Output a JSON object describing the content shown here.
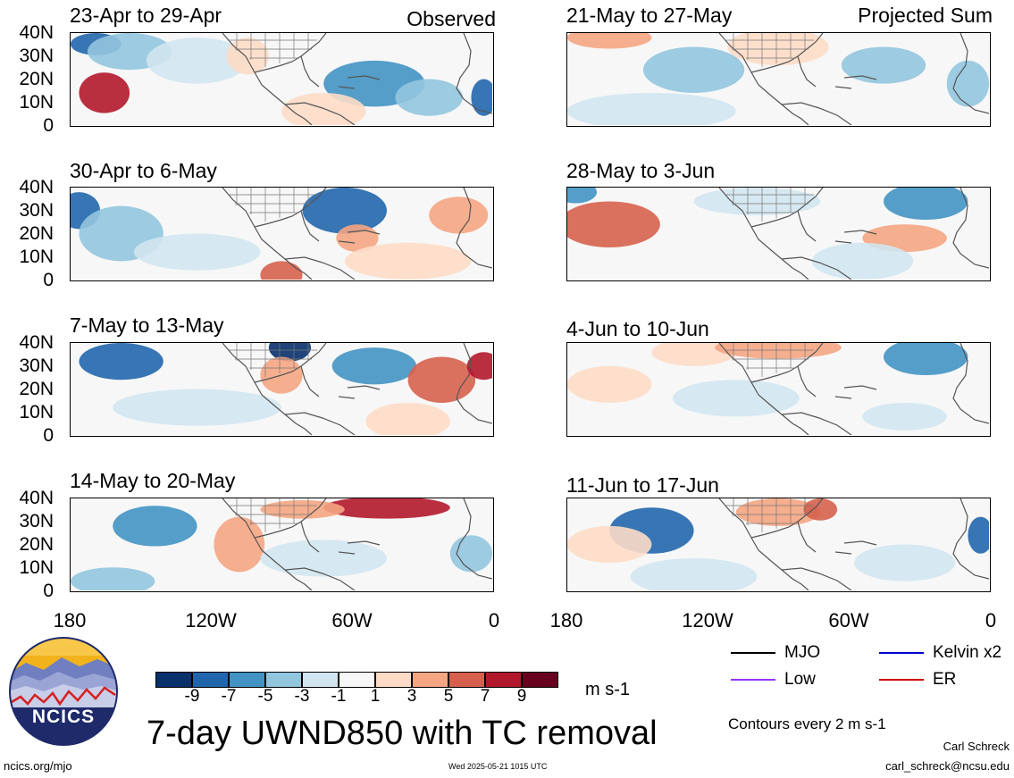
{
  "panels_left": [
    {
      "title": "23-Apr to 29-Apr",
      "corner": "Observed"
    },
    {
      "title": "30-Apr to 6-May",
      "corner": ""
    },
    {
      "title": "7-May to 13-May",
      "corner": ""
    },
    {
      "title": "14-May to 20-May",
      "corner": ""
    }
  ],
  "panels_right": [
    {
      "title": "21-May to 27-May",
      "corner": "Projected Sum"
    },
    {
      "title": "28-May to 3-Jun",
      "corner": ""
    },
    {
      "title": "4-Jun to 10-Jun",
      "corner": ""
    },
    {
      "title": "11-Jun to 17-Jun",
      "corner": ""
    }
  ],
  "lat_labels": [
    "40N",
    "30N",
    "20N",
    "10N",
    "0"
  ],
  "lon_labels": [
    "180",
    "120W",
    "60W",
    "0"
  ],
  "colorbar": {
    "colors": [
      "#08306b",
      "#2166ac",
      "#4393c3",
      "#92c5de",
      "#d1e5f0",
      "#f7f7f7",
      "#fddbc7",
      "#f4a582",
      "#d6604d",
      "#b2182b",
      "#67001f"
    ],
    "labels": [
      "-9",
      "-7",
      "-5",
      "-3",
      "-1",
      "1",
      "3",
      "5",
      "7",
      "9"
    ],
    "units": "m s-1"
  },
  "legend": [
    {
      "label": "MJO",
      "color": "#000000"
    },
    {
      "label": "Kelvin x2",
      "color": "#0000cc"
    },
    {
      "label": "Low",
      "color": "#9933ff"
    },
    {
      "label": "ER",
      "color": "#cc0000"
    }
  ],
  "contour_note": "Contours every 2 m s-1",
  "main_title": "7-day UWND850 with TC removal",
  "logo_text": "NCICS",
  "footer_left": "ncics.org/mjo",
  "footer_center": "Wed 2025-05-21 1015 UTC",
  "author_name": "Carl Schreck",
  "author_email": "carl_schreck@ncsu.edu",
  "map_data": [
    {
      "blobs": [
        [
          0.06,
          0.12,
          0.06,
          0.12,
          "#2166ac"
        ],
        [
          0.08,
          0.65,
          0.06,
          0.22,
          "#b2182b"
        ],
        [
          0.14,
          0.2,
          0.1,
          0.2,
          "#92c5de"
        ],
        [
          0.3,
          0.3,
          0.12,
          0.25,
          "#d1e5f0"
        ],
        [
          0.42,
          0.25,
          0.05,
          0.2,
          "#fddbc7"
        ],
        [
          0.72,
          0.55,
          0.12,
          0.25,
          "#4393c3"
        ],
        [
          0.85,
          0.7,
          0.08,
          0.2,
          "#92c5de"
        ],
        [
          0.98,
          0.7,
          0.03,
          0.2,
          "#2166ac"
        ],
        [
          0.6,
          0.85,
          0.1,
          0.2,
          "#fddbc7"
        ]
      ]
    },
    {
      "blobs": [
        [
          0.02,
          0.25,
          0.05,
          0.2,
          "#2166ac"
        ],
        [
          0.12,
          0.5,
          0.1,
          0.3,
          "#92c5de"
        ],
        [
          0.65,
          0.25,
          0.1,
          0.25,
          "#2166ac"
        ],
        [
          0.92,
          0.3,
          0.07,
          0.2,
          "#f4a582"
        ],
        [
          0.68,
          0.55,
          0.05,
          0.15,
          "#f4a582"
        ],
        [
          0.5,
          0.95,
          0.05,
          0.15,
          "#d6604d"
        ],
        [
          0.3,
          0.7,
          0.15,
          0.2,
          "#d1e5f0"
        ],
        [
          0.8,
          0.8,
          0.15,
          0.2,
          "#fddbc7"
        ]
      ]
    },
    {
      "blobs": [
        [
          0.12,
          0.2,
          0.1,
          0.2,
          "#2166ac"
        ],
        [
          0.52,
          0.05,
          0.05,
          0.15,
          "#08306b"
        ],
        [
          0.5,
          0.35,
          0.05,
          0.2,
          "#f4a582"
        ],
        [
          0.72,
          0.25,
          0.1,
          0.2,
          "#4393c3"
        ],
        [
          0.88,
          0.4,
          0.08,
          0.25,
          "#d6604d"
        ],
        [
          0.98,
          0.25,
          0.04,
          0.15,
          "#b2182b"
        ],
        [
          0.3,
          0.7,
          0.2,
          0.2,
          "#d1e5f0"
        ],
        [
          0.8,
          0.85,
          0.1,
          0.2,
          "#fddbc7"
        ]
      ]
    },
    {
      "blobs": [
        [
          0.2,
          0.3,
          0.1,
          0.22,
          "#4393c3"
        ],
        [
          0.4,
          0.5,
          0.06,
          0.3,
          "#f4a582"
        ],
        [
          0.75,
          0.1,
          0.15,
          0.12,
          "#b2182b"
        ],
        [
          0.55,
          0.12,
          0.1,
          0.1,
          "#f4a582"
        ],
        [
          0.1,
          0.9,
          0.1,
          0.15,
          "#92c5de"
        ],
        [
          0.6,
          0.65,
          0.15,
          0.2,
          "#d1e5f0"
        ],
        [
          0.95,
          0.6,
          0.05,
          0.2,
          "#92c5de"
        ]
      ]
    },
    {
      "blobs": [
        [
          0.1,
          0.05,
          0.1,
          0.12,
          "#f4a582"
        ],
        [
          0.3,
          0.4,
          0.12,
          0.25,
          "#92c5de"
        ],
        [
          0.5,
          0.15,
          0.12,
          0.2,
          "#fddbc7"
        ],
        [
          0.75,
          0.35,
          0.1,
          0.2,
          "#92c5de"
        ],
        [
          0.95,
          0.55,
          0.05,
          0.25,
          "#92c5de"
        ],
        [
          0.2,
          0.85,
          0.2,
          0.2,
          "#d1e5f0"
        ]
      ]
    },
    {
      "blobs": [
        [
          0.1,
          0.4,
          0.12,
          0.25,
          "#d6604d"
        ],
        [
          0.02,
          0.05,
          0.05,
          0.12,
          "#4393c3"
        ],
        [
          0.45,
          0.15,
          0.15,
          0.15,
          "#d1e5f0"
        ],
        [
          0.85,
          0.15,
          0.1,
          0.2,
          "#4393c3"
        ],
        [
          0.8,
          0.55,
          0.1,
          0.15,
          "#f4a582"
        ],
        [
          0.7,
          0.8,
          0.12,
          0.2,
          "#d1e5f0"
        ]
      ]
    },
    {
      "blobs": [
        [
          0.3,
          0.1,
          0.1,
          0.15,
          "#fddbc7"
        ],
        [
          0.5,
          0.05,
          0.15,
          0.12,
          "#f4a582"
        ],
        [
          0.1,
          0.45,
          0.1,
          0.2,
          "#fddbc7"
        ],
        [
          0.85,
          0.15,
          0.1,
          0.2,
          "#4393c3"
        ],
        [
          0.4,
          0.6,
          0.15,
          0.2,
          "#d1e5f0"
        ],
        [
          0.8,
          0.8,
          0.1,
          0.15,
          "#d1e5f0"
        ]
      ]
    },
    {
      "blobs": [
        [
          0.2,
          0.35,
          0.1,
          0.25,
          "#2166ac"
        ],
        [
          0.5,
          0.15,
          0.1,
          0.15,
          "#f4a582"
        ],
        [
          0.6,
          0.12,
          0.04,
          0.12,
          "#d6604d"
        ],
        [
          0.1,
          0.5,
          0.1,
          0.2,
          "#fddbc7"
        ],
        [
          0.98,
          0.4,
          0.03,
          0.2,
          "#2166ac"
        ],
        [
          0.8,
          0.7,
          0.12,
          0.2,
          "#d1e5f0"
        ],
        [
          0.3,
          0.85,
          0.15,
          0.2,
          "#d1e5f0"
        ]
      ]
    }
  ]
}
